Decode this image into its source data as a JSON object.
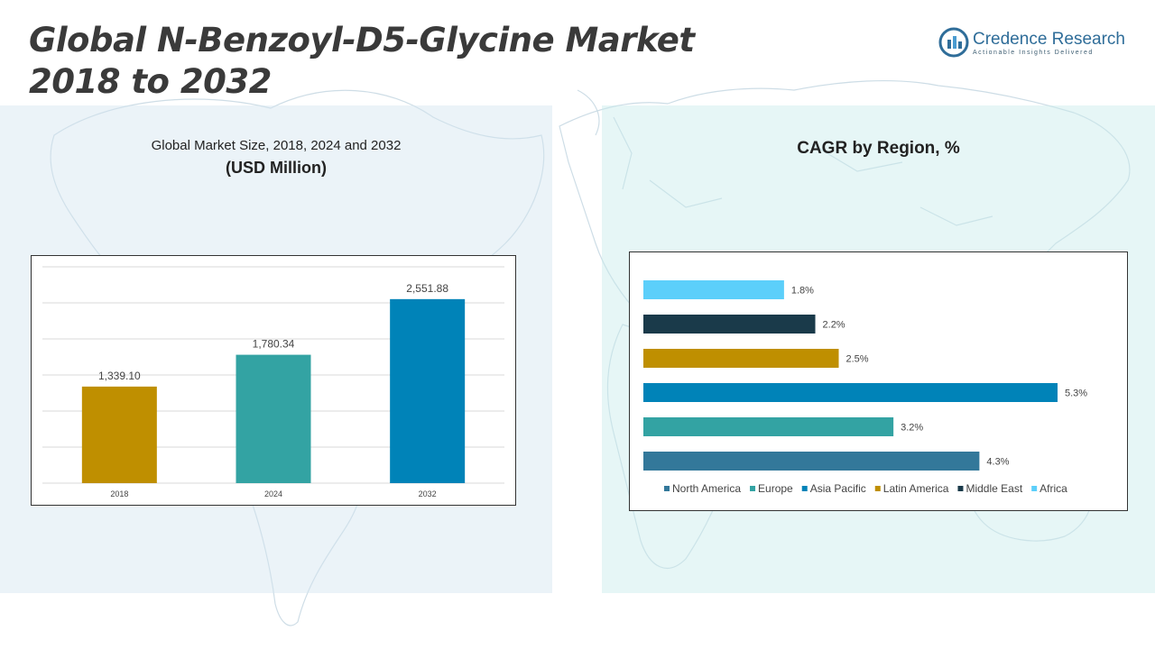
{
  "title_line1": "Global N-Benzoyl-D5-Glycine Market",
  "title_line2": "2018 to 2032",
  "logo": {
    "name": "Credence Research",
    "tagline": "Actionable Insights Delivered",
    "color": "#2f6d99"
  },
  "left_chart": {
    "subtitle": "Global Market Size, 2018, 2024 and 2032",
    "unit": "(USD Million)"
  },
  "right_chart": {
    "title": "CAGR by Region, %"
  },
  "chart_data": [
    {
      "type": "bar",
      "title": "Global Market Size, 2018, 2024 and 2032",
      "ylabel": "(USD Million)",
      "categories": [
        "2018",
        "2024",
        "2032"
      ],
      "values": [
        1339.1,
        1780.34,
        2551.88
      ],
      "value_labels": [
        "1,339.10",
        "1,780.34",
        "2,551.88"
      ],
      "colors": [
        "#bf8f00",
        "#33a3a3",
        "#0083b8"
      ],
      "ylim": [
        0,
        3000
      ],
      "grid": true
    },
    {
      "type": "bar",
      "orientation": "horizontal",
      "title": "CAGR by Region, %",
      "categories": [
        "North America",
        "Europe",
        "Asia Pacific",
        "Latin America",
        "Middle East",
        "Africa"
      ],
      "values": [
        4.3,
        3.2,
        5.3,
        2.5,
        2.2,
        1.8
      ],
      "value_labels": [
        "4.3%",
        "3.2%",
        "5.3%",
        "2.5%",
        "2.2%",
        "1.8%"
      ],
      "colors": [
        "#33789a",
        "#33a3a3",
        "#0083b8",
        "#bf8f00",
        "#1a3a4a",
        "#5ccffa"
      ],
      "legend": "bottom",
      "grid": false
    }
  ]
}
